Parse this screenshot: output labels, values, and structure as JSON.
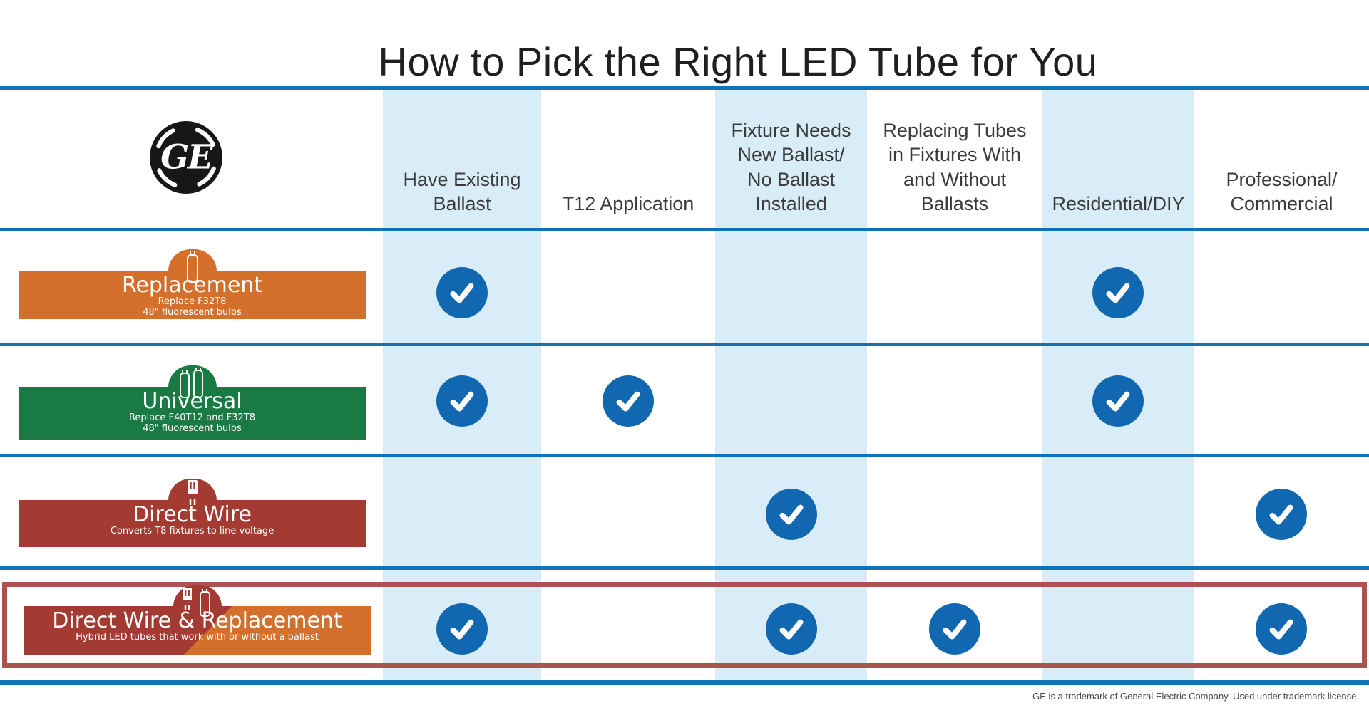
{
  "title": "How to Pick the Right LED Tube for You",
  "logo": {
    "name": "ge-monogram",
    "letters": "GE"
  },
  "colors": {
    "accent_blue": "#1272B8",
    "light_blue": "#D8EDF8",
    "check_blue": "#1168B0",
    "highlight_border": "#A9544E",
    "text_dark": "#3B3B3B"
  },
  "columns": [
    {
      "label": "Have Existing\nBallast",
      "highlighted": true
    },
    {
      "label": "T12 Application",
      "highlighted": false
    },
    {
      "label": "Fixture Needs\nNew Ballast/\nNo Ballast\nInstalled",
      "highlighted": true
    },
    {
      "label": "Replacing Tubes\nin Fixtures With\nand Without\nBallasts",
      "highlighted": false
    },
    {
      "label": "Residential/DIY",
      "highlighted": true
    },
    {
      "label": "Professional/\nCommercial",
      "highlighted": false
    }
  ],
  "rows": [
    {
      "title": "Replacement",
      "subtitle1": "Replace F32T8",
      "subtitle2": "48\" fluorescent bulbs",
      "color": "#D4702B",
      "icon": "single-tube-icon",
      "checks": [
        true,
        false,
        false,
        false,
        true,
        false
      ],
      "highlighted": false
    },
    {
      "title": "Universal",
      "subtitle1": "Replace F40T12 and F32T8",
      "subtitle2": "48\" fluorescent bulbs",
      "color": "#1A7A44",
      "icon": "double-tube-icon",
      "checks": [
        true,
        true,
        false,
        false,
        true,
        false
      ],
      "highlighted": false
    },
    {
      "title": "Direct Wire",
      "subtitle1": "Converts T8 fixtures to line voltage",
      "color": "#A33B33",
      "icon": "wire-socket-icon",
      "checks": [
        false,
        false,
        true,
        false,
        false,
        true
      ],
      "highlighted": false
    },
    {
      "title": "Direct Wire & Replacement",
      "subtitle1": "Hybrid LED tubes that work with or without a ballast",
      "color": "#A33B33",
      "color2": "#D4702B",
      "icon": "wire-socket-and-tube-icon",
      "checks": [
        true,
        false,
        true,
        true,
        false,
        true
      ],
      "highlighted": true
    }
  ],
  "footer": {
    "disclaimer": "GE is a trademark of General Electric Company. Used under trademark license."
  }
}
